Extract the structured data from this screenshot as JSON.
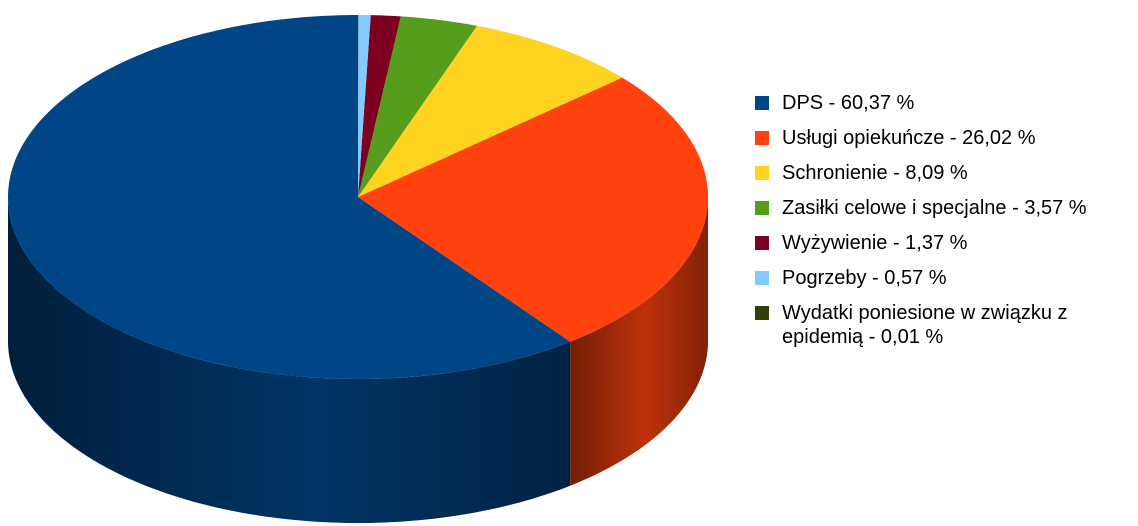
{
  "chart_data": {
    "type": "pie3d",
    "categories": [
      "DPS - 60,37 %",
      "Usługi opiekuńcze - 26,02 %",
      "Schronienie - 8,09 %",
      "Zasiłki celowe i specjalne - 3,57 %",
      "Wyżywienie - 1,37 %",
      "Pogrzeby - 0,57 %",
      "Wydatki poniesione w związku z epidemią - 0,01 %"
    ],
    "values": [
      60.37,
      26.02,
      8.09,
      3.57,
      1.37,
      0.57,
      0.01
    ],
    "colors": [
      "#004586",
      "#ff420e",
      "#ffd320",
      "#579d1c",
      "#7e0021",
      "#83caff",
      "#314004"
    ],
    "legend": "right"
  }
}
